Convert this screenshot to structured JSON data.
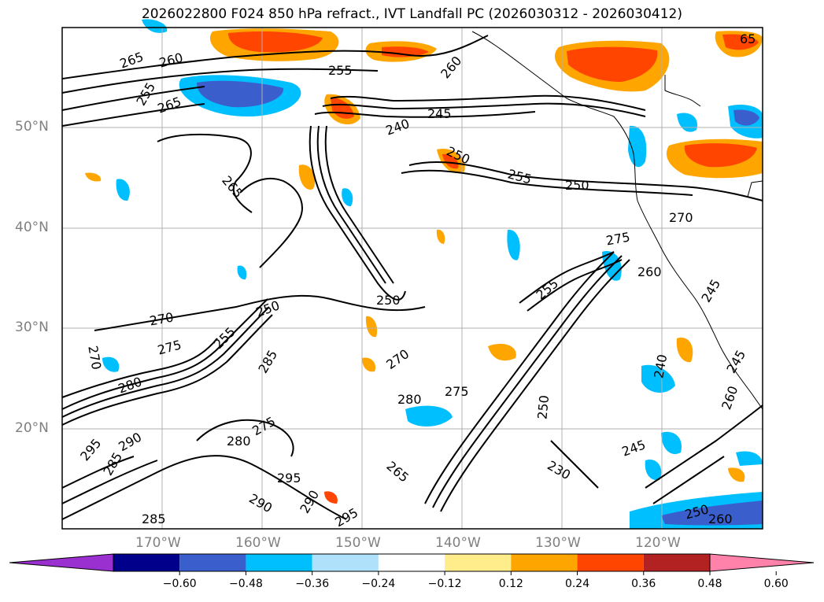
{
  "title": "2026022800 F024 850 hPa refract., IVT Landfall PC (2026030312 - 2026030412)",
  "lat_labels": [
    "50°N",
    "40°N",
    "30°N",
    "20°N"
  ],
  "lon_labels": [
    "170°W",
    "160°W",
    "150°W",
    "140°W",
    "130°W",
    "120°W"
  ],
  "contour_labels": [
    "265",
    "260",
    "255",
    "260",
    "255",
    "265",
    "65",
    "240",
    "245",
    "250",
    "265",
    "255",
    "250",
    "270",
    "275",
    "250",
    "250",
    "270",
    "275",
    "270",
    "255",
    "285",
    "255",
    "260",
    "245",
    "275",
    "270",
    "280",
    "275",
    "280",
    "280",
    "290",
    "295",
    "285",
    "265",
    "290",
    "295",
    "285",
    "290",
    "295",
    "250",
    "230",
    "245",
    "260",
    "240",
    "245",
    "250",
    "260"
  ],
  "colorbar": {
    "tick_labels": [
      "−0.60",
      "−0.48",
      "−0.36",
      "−0.24",
      "−0.12",
      "0.12",
      "0.24",
      "0.36",
      "0.48",
      "0.60"
    ],
    "colors": [
      "#9b30d0",
      "#00008b",
      "#3a5fcd",
      "#00bfff",
      "#afe1fa",
      "#ffffff",
      "#ffec8b",
      "#ffa500",
      "#ff4500",
      "#b22222",
      "#ff82ab"
    ]
  }
}
